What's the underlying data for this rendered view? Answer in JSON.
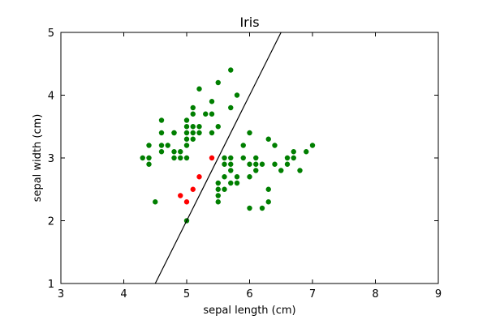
{
  "chart_data": {
    "type": "scatter",
    "title": "Iris",
    "xlabel": "sepal length (cm)",
    "ylabel": "sepal width (cm)",
    "xlim": [
      3,
      9
    ],
    "ylim": [
      1,
      5
    ],
    "xticks": [
      "3",
      "4",
      "5",
      "6",
      "7",
      "8",
      "9"
    ],
    "yticks": [
      "1",
      "2",
      "3",
      "4",
      "5"
    ],
    "grid": false,
    "colors": {
      "green": "#007f00",
      "red": "#ff0000",
      "line": "#000000"
    },
    "series": [
      {
        "color": "#007f00",
        "points": [
          [
            4.3,
            3.0
          ],
          [
            4.4,
            3.2
          ],
          [
            4.4,
            3.0
          ],
          [
            4.4,
            2.9
          ],
          [
            4.5,
            2.3
          ],
          [
            4.6,
            3.6
          ],
          [
            4.6,
            3.4
          ],
          [
            4.6,
            3.2
          ],
          [
            4.6,
            3.1
          ],
          [
            4.7,
            3.2
          ],
          [
            4.8,
            3.4
          ],
          [
            4.8,
            3.4
          ],
          [
            4.8,
            3.1
          ],
          [
            4.8,
            3.0
          ],
          [
            4.9,
            3.1
          ],
          [
            4.9,
            3.0
          ],
          [
            5.0,
            3.6
          ],
          [
            5.0,
            3.5
          ],
          [
            5.0,
            3.4
          ],
          [
            5.0,
            3.3
          ],
          [
            5.0,
            3.2
          ],
          [
            5.0,
            3.0
          ],
          [
            5.0,
            2.0
          ],
          [
            5.1,
            3.8
          ],
          [
            5.1,
            3.7
          ],
          [
            5.1,
            3.5
          ],
          [
            5.1,
            3.4
          ],
          [
            5.1,
            3.3
          ],
          [
            5.2,
            4.1
          ],
          [
            5.2,
            3.5
          ],
          [
            5.2,
            3.4
          ],
          [
            5.3,
            3.7
          ],
          [
            5.4,
            3.9
          ],
          [
            5.4,
            3.7
          ],
          [
            5.4,
            3.4
          ],
          [
            5.5,
            4.2
          ],
          [
            5.5,
            3.5
          ],
          [
            5.5,
            2.6
          ],
          [
            5.5,
            2.5
          ],
          [
            5.5,
            2.4
          ],
          [
            5.5,
            2.3
          ],
          [
            5.6,
            3.0
          ],
          [
            5.6,
            2.9
          ],
          [
            5.6,
            2.7
          ],
          [
            5.6,
            2.5
          ],
          [
            5.7,
            4.4
          ],
          [
            5.7,
            3.8
          ],
          [
            5.7,
            3.0
          ],
          [
            5.7,
            2.9
          ],
          [
            5.7,
            2.8
          ],
          [
            5.7,
            2.6
          ],
          [
            5.8,
            4.0
          ],
          [
            5.8,
            2.7
          ],
          [
            5.8,
            2.6
          ],
          [
            5.9,
            3.2
          ],
          [
            5.9,
            3.0
          ],
          [
            6.0,
            3.4
          ],
          [
            6.0,
            2.9
          ],
          [
            6.0,
            2.7
          ],
          [
            6.0,
            2.2
          ],
          [
            6.1,
            3.0
          ],
          [
            6.1,
            2.9
          ],
          [
            6.1,
            2.8
          ],
          [
            6.2,
            2.9
          ],
          [
            6.2,
            2.2
          ],
          [
            6.3,
            3.3
          ],
          [
            6.3,
            2.5
          ],
          [
            6.3,
            2.3
          ],
          [
            6.4,
            3.2
          ],
          [
            6.4,
            2.9
          ],
          [
            6.5,
            2.8
          ],
          [
            6.6,
            3.0
          ],
          [
            6.6,
            2.9
          ],
          [
            6.7,
            3.1
          ],
          [
            6.7,
            3.0
          ],
          [
            6.8,
            2.8
          ],
          [
            6.9,
            3.1
          ],
          [
            7.0,
            3.2
          ]
        ]
      },
      {
        "color": "#ff0000",
        "points": [
          [
            4.9,
            2.4
          ],
          [
            5.0,
            2.3
          ],
          [
            5.1,
            2.5
          ],
          [
            5.2,
            2.7
          ],
          [
            5.4,
            3.0
          ]
        ]
      }
    ],
    "decision_line": {
      "x": [
        4.5,
        6.5
      ],
      "y": [
        1.0,
        5.0
      ]
    }
  }
}
